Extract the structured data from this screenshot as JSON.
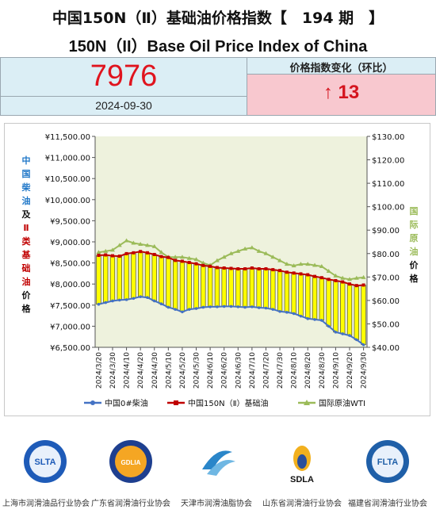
{
  "header": {
    "title_cn": "中国150N（Ⅱ）基础油价格指数【　194 期　】",
    "title_en": "150N（II）Base Oil Price Index of China"
  },
  "index": {
    "value": "7976",
    "date": "2024-09-30",
    "change_label": "价格指数变化（环比）",
    "change_value": "↑ 13"
  },
  "colors": {
    "diesel": "#4472c4",
    "base_oil": "#c00000",
    "wti": "#9bbb59",
    "bar_fill": "#ffff00",
    "plot_bg": "#eef2dd"
  },
  "chart_data": {
    "type": "line",
    "categories": [
      "2024/3/20",
      "2024/3/25",
      "2024/3/30",
      "2024/4/5",
      "2024/4/10",
      "2024/4/15",
      "2024/4/20",
      "2024/4/25",
      "2024/4/30",
      "2024/5/5",
      "2024/5/10",
      "2024/5/15",
      "2024/5/20",
      "2024/5/25",
      "2024/5/30",
      "2024/6/5",
      "2024/6/10",
      "2024/6/15",
      "2024/6/20",
      "2024/6/25",
      "2024/6/30",
      "2024/7/5",
      "2024/7/10",
      "2024/7/15",
      "2024/7/20",
      "2024/7/25",
      "2024/7/30",
      "2024/8/5",
      "2024/8/10",
      "2024/8/15",
      "2024/8/20",
      "2024/8/25",
      "2024/8/30",
      "2024/9/5",
      "2024/9/10",
      "2024/9/15",
      "2024/9/20",
      "2024/9/25",
      "2024/9/30"
    ],
    "x_tick_labels": [
      "2024/3/20",
      "2024/3/30",
      "2024/4/10",
      "2024/4/20",
      "2024/4/30",
      "2024/5/10",
      "2024/5/20",
      "2024/5/30",
      "2024/6/10",
      "2024/6/20",
      "2024/6/30",
      "2024/7/10",
      "2024/7/20",
      "2024/7/30",
      "2024/8/10",
      "2024/8/20",
      "2024/8/30",
      "2024/9/10",
      "2024/9/20",
      "2024/9/30"
    ],
    "series": [
      {
        "name": "中国0#柴油",
        "axis": "left",
        "values": [
          7520,
          7560,
          7600,
          7620,
          7630,
          7660,
          7700,
          7680,
          7600,
          7530,
          7450,
          7400,
          7340,
          7400,
          7420,
          7450,
          7460,
          7460,
          7470,
          7470,
          7460,
          7450,
          7460,
          7440,
          7430,
          7400,
          7350,
          7330,
          7300,
          7240,
          7180,
          7160,
          7140,
          7000,
          6860,
          6820,
          6780,
          6680,
          6560
        ]
      },
      {
        "name": "中国150N（Ⅱ）基础油",
        "axis": "left",
        "values": [
          8680,
          8690,
          8670,
          8660,
          8720,
          8740,
          8770,
          8740,
          8700,
          8650,
          8630,
          8560,
          8540,
          8510,
          8480,
          8440,
          8420,
          8390,
          8380,
          8370,
          8360,
          8360,
          8380,
          8360,
          8360,
          8340,
          8320,
          8280,
          8260,
          8240,
          8220,
          8180,
          8150,
          8110,
          8080,
          8050,
          8000,
          7963,
          7976
        ]
      },
      {
        "name": "国际原油WTI",
        "axis": "right",
        "values": [
          80.5,
          81.0,
          81.5,
          83.5,
          85.5,
          84.5,
          84.0,
          83.5,
          83.0,
          80.5,
          78.5,
          78.5,
          78.5,
          78.0,
          77.5,
          76.0,
          75.0,
          77.0,
          78.5,
          80.0,
          81.0,
          82.0,
          82.5,
          81.0,
          80.0,
          78.5,
          77.0,
          75.5,
          74.8,
          75.5,
          75.5,
          75.0,
          74.5,
          72.5,
          70.5,
          69.5,
          69.0,
          69.5,
          69.8
        ]
      }
    ],
    "ylim_left": [
      6500,
      11500
    ],
    "yticks_left": [
      "¥11,500.00",
      "¥11,000.00",
      "¥10,500.00",
      "¥10,000.00",
      "¥9,500.00",
      "¥9,000.00",
      "¥8,500.00",
      "¥8,000.00",
      "¥7,500.00",
      "¥7,000.00",
      "¥6,500.00"
    ],
    "ylim_right": [
      40,
      130
    ],
    "yticks_right": [
      "$130.00",
      "$120.00",
      "$110.00",
      "$100.00",
      "$90.00",
      "$80.00",
      "$70.00",
      "$60.00",
      "$50.00",
      "$40.00"
    ],
    "left_axis_title": [
      "中",
      "国",
      "柴",
      "油",
      "及",
      "Ⅱ",
      "类",
      "基",
      "础",
      "油",
      "价",
      "格"
    ],
    "right_axis_title": [
      "国",
      "际",
      "原",
      "油",
      "价",
      "格"
    ],
    "legend": [
      "中国0#柴油",
      "中国150N（Ⅱ）基础油",
      "国际原油WTI"
    ],
    "legend_position": "bottom",
    "grid": false
  },
  "logos": [
    {
      "name": "上海市润滑油品行业协会",
      "mark": "SLTA"
    },
    {
      "name": "广东省润滑油行业协会",
      "mark": "GDLIA"
    },
    {
      "name": "天津市润滑油脂协会",
      "mark": ""
    },
    {
      "name": "山东省润滑油行业协会",
      "mark": "SDLA"
    },
    {
      "name": "福建省润滑油行业协会",
      "mark": "FLTA"
    }
  ]
}
